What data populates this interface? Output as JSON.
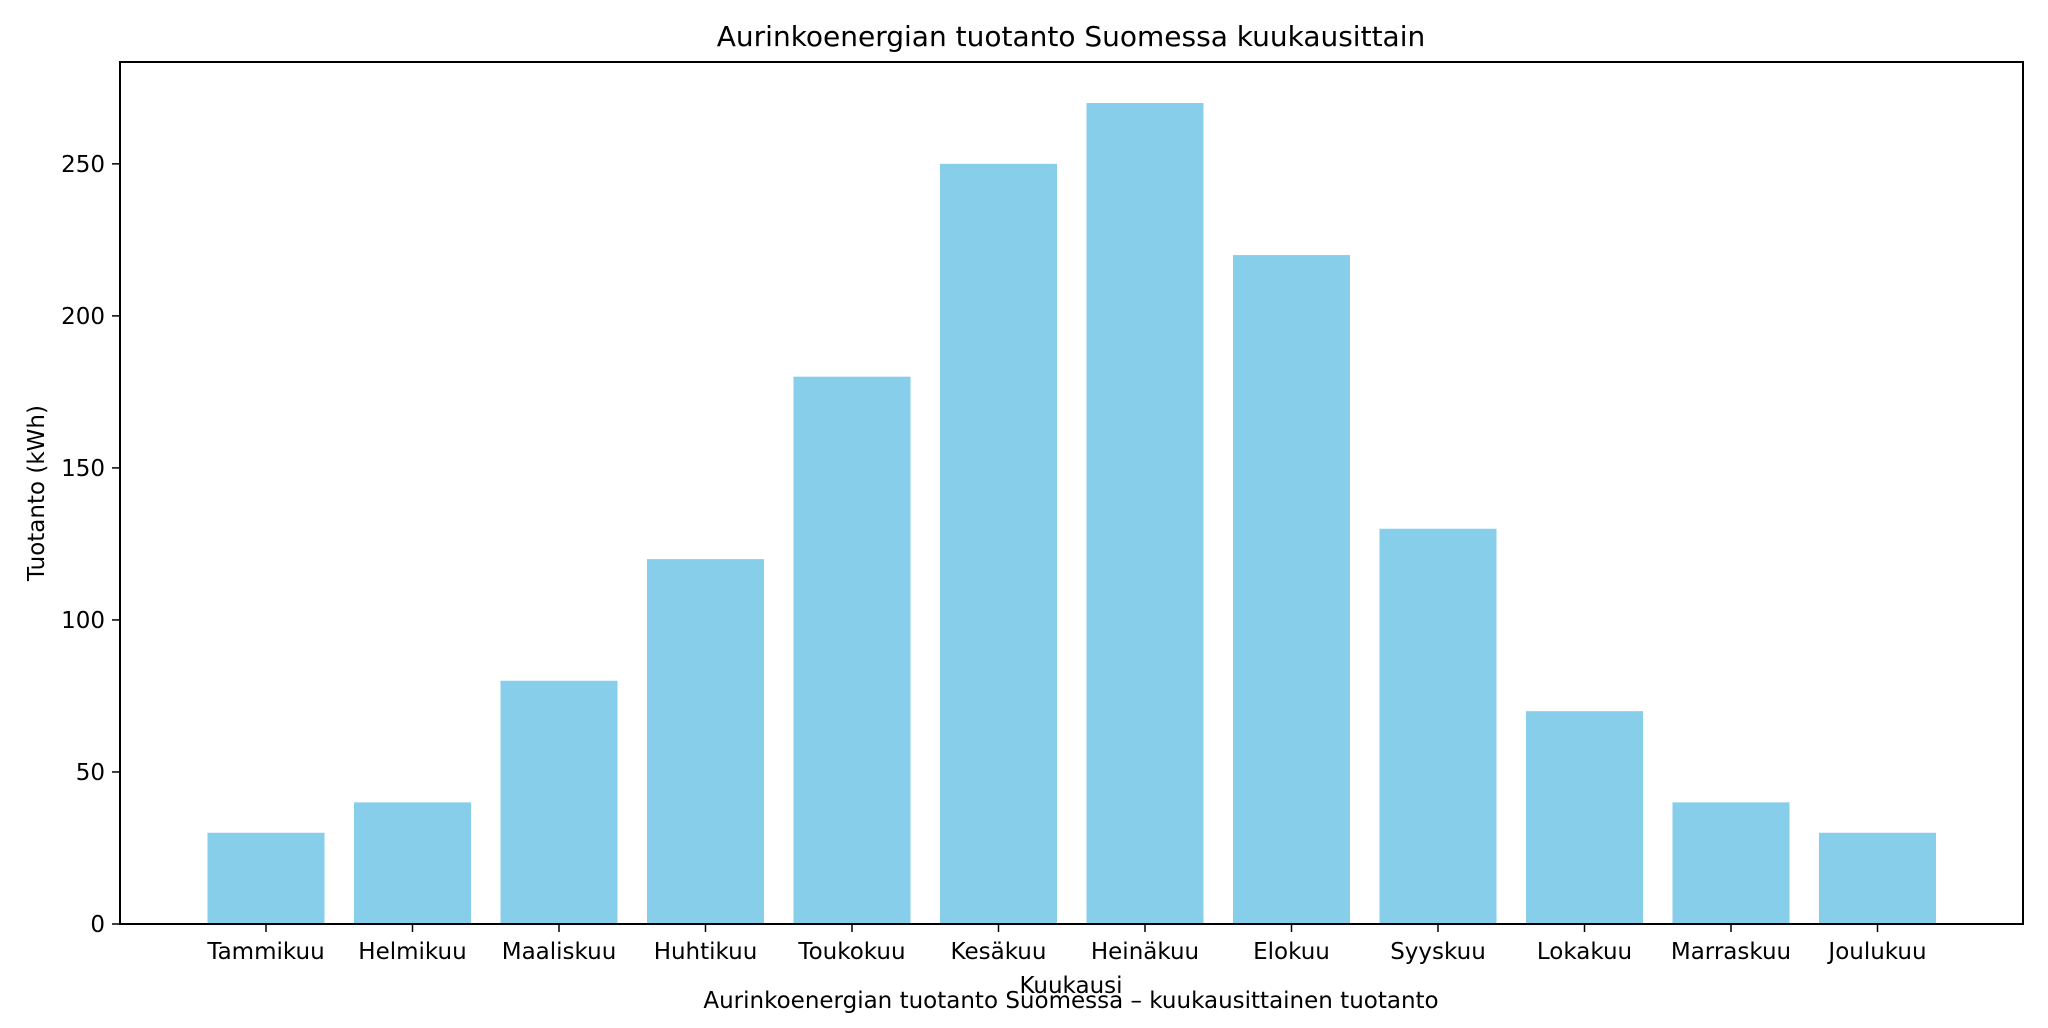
{
  "chart_data": {
    "type": "bar",
    "title": "Aurinkoenergian tuotanto Suomessa kuukausittain",
    "xlabel": "Kuukausi",
    "ylabel": "Tuotanto (kWh)",
    "caption": "Aurinkoenergian tuotanto Suomessa – kuukausittainen tuotanto",
    "categories": [
      "Tammikuu",
      "Helmikuu",
      "Maaliskuu",
      "Huhtikuu",
      "Toukokuu",
      "Kesäkuu",
      "Heinäkuu",
      "Elokuu",
      "Syyskuu",
      "Lokakuu",
      "Marraskuu",
      "Joulukuu"
    ],
    "values": [
      30,
      40,
      80,
      120,
      180,
      250,
      270,
      220,
      130,
      70,
      40,
      30
    ],
    "ylim": [
      0,
      283.5
    ],
    "yticks": [
      0,
      50,
      100,
      150,
      200,
      250
    ],
    "grid": false,
    "bar_color": "#87CEEB"
  }
}
